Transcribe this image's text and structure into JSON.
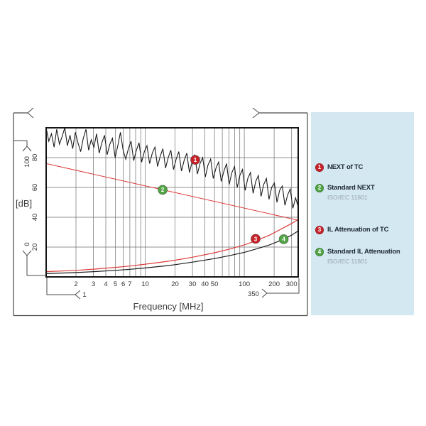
{
  "colors": {
    "panel_bg": "#d4e8f2",
    "badge_red": "#c8242b",
    "badge_green": "#52a546",
    "line_red": "#dd3c3c",
    "line_black": "#1c1c1c",
    "grid": "#6e6e6e",
    "axis_border": "#141414",
    "frame": "#4a4a4a",
    "label_dark": "#1e2a36",
    "label_gray": "#98a4ac",
    "tick_text": "#333333"
  },
  "ylabel": "[dB]",
  "xlabel": "Frequency [MHz]",
  "axis_callouts": {
    "y_top": "100",
    "y_bottom": "0",
    "x_left": "1",
    "x_right": "350"
  },
  "y_ticks": [
    20,
    40,
    60,
    80
  ],
  "x_ticks_labeled": [
    2,
    3,
    4,
    5,
    6,
    7,
    10,
    20,
    30,
    40,
    50,
    100,
    200,
    300
  ],
  "x_grid": [
    2,
    3,
    4,
    5,
    6,
    7,
    8,
    9,
    10,
    20,
    30,
    40,
    50,
    60,
    70,
    80,
    90,
    100,
    200,
    300
  ],
  "legend": [
    {
      "num": "1",
      "color": "red",
      "label": "NEXT of TC",
      "sub": ""
    },
    {
      "num": "2",
      "color": "green",
      "label": "Standard NEXT",
      "sub": "ISO/IEC 11801"
    },
    {
      "num": "3",
      "color": "red",
      "label": "IL Attenuation of TC",
      "sub": ""
    },
    {
      "num": "4",
      "color": "green",
      "label": "Standard IL Attenuation",
      "sub": "ISO/IEC 11801"
    }
  ],
  "chart_data": {
    "type": "line",
    "x_scale": "log",
    "x_range": [
      1,
      350
    ],
    "y_range": [
      0,
      100
    ],
    "xlabel": "Frequency [MHz]",
    "ylabel": "[dB]",
    "grid": true,
    "legend_position": "right",
    "series": [
      {
        "name": "NEXT of TC",
        "marker": 1,
        "color": "black",
        "style": "noisy-measurement",
        "x_spacing": "log-uniform 1..350 MHz",
        "values_db": [
          100,
          91,
          96,
          87,
          99,
          89,
          94,
          100,
          88,
          95,
          86,
          97,
          90,
          84,
          93,
          99,
          85,
          92,
          87,
          96,
          83,
          90,
          95,
          82,
          89,
          93,
          80,
          88,
          97,
          85,
          79,
          86,
          91,
          78,
          85,
          90,
          77,
          84,
          88,
          76,
          83,
          87,
          74,
          81,
          86,
          73,
          80,
          85,
          72,
          79,
          84,
          71,
          78,
          83,
          70,
          77,
          82,
          69,
          76,
          80,
          67,
          75,
          79,
          66,
          73,
          77,
          64,
          71,
          76,
          62,
          70,
          74,
          60,
          68,
          72,
          58,
          66,
          70,
          56,
          64,
          68,
          54,
          62,
          66,
          52,
          60,
          63,
          50,
          58,
          61,
          48,
          55,
          59,
          46,
          53,
          47
        ]
      },
      {
        "name": "Standard NEXT ISO/IEC 11801",
        "marker": 2,
        "color": "red",
        "style": "straight-in-log",
        "points": [
          [
            1,
            76
          ],
          [
            350,
            38
          ]
        ]
      },
      {
        "name": "IL Attenuation of TC",
        "marker": 3,
        "color": "red",
        "style": "smooth",
        "points": [
          [
            1,
            3.5
          ],
          [
            2,
            4.4
          ],
          [
            3,
            5.2
          ],
          [
            5,
            6.4
          ],
          [
            7,
            7.3
          ],
          [
            10,
            8.5
          ],
          [
            15,
            10
          ],
          [
            20,
            11.2
          ],
          [
            30,
            13.2
          ],
          [
            50,
            16.2
          ],
          [
            70,
            18.5
          ],
          [
            100,
            21.5
          ],
          [
            130,
            24.2
          ],
          [
            180,
            28
          ],
          [
            250,
            33
          ],
          [
            300,
            35.8
          ],
          [
            350,
            38.5
          ]
        ]
      },
      {
        "name": "Standard IL Attenuation ISO/IEC 11801",
        "marker": 4,
        "color": "black",
        "style": "smooth",
        "points": [
          [
            1,
            2.2
          ],
          [
            2,
            2.9
          ],
          [
            3,
            3.5
          ],
          [
            5,
            4.4
          ],
          [
            7,
            5.1
          ],
          [
            10,
            6
          ],
          [
            15,
            7.2
          ],
          [
            20,
            8.2
          ],
          [
            30,
            9.9
          ],
          [
            50,
            12.3
          ],
          [
            70,
            14.2
          ],
          [
            100,
            16.5
          ],
          [
            130,
            18.6
          ],
          [
            180,
            21.5
          ],
          [
            250,
            25.3
          ],
          [
            300,
            28
          ],
          [
            350,
            30.8
          ]
        ]
      }
    ],
    "marker_positions": [
      {
        "n": "1",
        "f": 32,
        "db": 78.5
      },
      {
        "n": "2",
        "f": 15,
        "db": 58.4
      },
      {
        "n": "3",
        "f": 130,
        "db": 25.5
      },
      {
        "n": "4",
        "f": 250,
        "db": 25.3
      }
    ]
  }
}
